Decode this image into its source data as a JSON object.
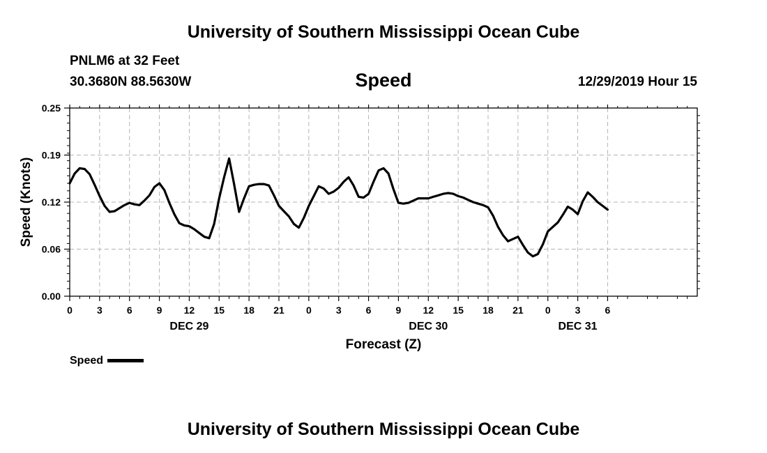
{
  "header": {
    "title": "University of Southern Mississippi Ocean Cube",
    "station": "PNLM6 at 32 Feet",
    "coords": "30.3680N 88.5630W",
    "variable": "Speed",
    "datetime": "12/29/2019 Hour 15"
  },
  "footer": {
    "title": "University of Southern Mississippi Ocean Cube"
  },
  "legend": {
    "label": "Speed"
  },
  "colors": {
    "line": "#000000",
    "grid": "#b4b4b4"
  },
  "chart_data": {
    "type": "line",
    "title": "Speed",
    "ylabel": "Speed (Knots)",
    "xlabel": "Forecast (Z)",
    "ylim": [
      0,
      0.25
    ],
    "xlim": [
      0,
      63
    ],
    "grid": true,
    "legend_position": "bottom-left",
    "yticks": [
      {
        "value": 0.0,
        "label": "0.00"
      },
      {
        "value": 0.0625,
        "label": "0.06"
      },
      {
        "value": 0.125,
        "label": "0.12"
      },
      {
        "value": 0.1875,
        "label": "0.19"
      },
      {
        "value": 0.25,
        "label": "0.25"
      }
    ],
    "xticks": [
      {
        "value": 0,
        "label": "0"
      },
      {
        "value": 3,
        "label": "3"
      },
      {
        "value": 6,
        "label": "6"
      },
      {
        "value": 9,
        "label": "9"
      },
      {
        "value": 12,
        "label": "12"
      },
      {
        "value": 15,
        "label": "15"
      },
      {
        "value": 18,
        "label": "18"
      },
      {
        "value": 21,
        "label": "21"
      },
      {
        "value": 24,
        "label": "0"
      },
      {
        "value": 27,
        "label": "3"
      },
      {
        "value": 30,
        "label": "6"
      },
      {
        "value": 33,
        "label": "9"
      },
      {
        "value": 36,
        "label": "12"
      },
      {
        "value": 39,
        "label": "15"
      },
      {
        "value": 42,
        "label": "18"
      },
      {
        "value": 45,
        "label": "21"
      },
      {
        "value": 48,
        "label": "0"
      },
      {
        "value": 51,
        "label": "3"
      },
      {
        "value": 54,
        "label": "6"
      }
    ],
    "date_labels": [
      {
        "value": 12,
        "label": "DEC 29"
      },
      {
        "value": 36,
        "label": "DEC 30"
      },
      {
        "value": 51,
        "label": "DEC 31"
      }
    ],
    "series": [
      {
        "name": "Speed",
        "x": [
          0,
          0.5,
          1,
          1.5,
          2,
          2.5,
          3,
          3.5,
          4,
          4.5,
          5,
          5.5,
          6,
          6.5,
          7,
          7.5,
          8,
          8.5,
          9,
          9.5,
          10,
          10.5,
          11,
          11.5,
          12,
          12.5,
          13,
          13.5,
          14,
          14.5,
          15,
          15.5,
          16,
          16.5,
          17,
          17.5,
          18,
          18.5,
          19,
          19.5,
          20,
          20.5,
          21,
          21.5,
          22,
          22.5,
          23,
          23.5,
          24,
          24.5,
          25,
          25.5,
          26,
          26.5,
          27,
          27.5,
          28,
          28.5,
          29,
          29.5,
          30,
          30.5,
          31,
          31.5,
          32,
          32.5,
          33,
          33.5,
          34,
          34.5,
          35,
          35.5,
          36,
          36.5,
          37,
          37.5,
          38,
          38.5,
          39,
          39.5,
          40,
          40.5,
          41,
          41.5,
          42,
          42.5,
          43,
          43.5,
          44,
          44.5,
          45,
          45.5,
          46,
          46.5,
          47,
          47.5,
          48,
          48.5,
          49,
          49.5,
          50,
          50.5,
          51,
          51.5,
          52,
          52.5,
          53,
          53.5,
          54
        ],
        "values": [
          0.15,
          0.163,
          0.17,
          0.169,
          0.162,
          0.148,
          0.133,
          0.12,
          0.112,
          0.113,
          0.117,
          0.121,
          0.124,
          0.122,
          0.121,
          0.127,
          0.134,
          0.145,
          0.15,
          0.141,
          0.124,
          0.109,
          0.097,
          0.094,
          0.093,
          0.089,
          0.084,
          0.079,
          0.077,
          0.096,
          0.13,
          0.158,
          0.183,
          0.149,
          0.112,
          0.13,
          0.146,
          0.148,
          0.149,
          0.149,
          0.147,
          0.134,
          0.12,
          0.113,
          0.106,
          0.096,
          0.091,
          0.104,
          0.12,
          0.133,
          0.146,
          0.143,
          0.136,
          0.139,
          0.144,
          0.152,
          0.158,
          0.147,
          0.132,
          0.131,
          0.136,
          0.152,
          0.167,
          0.17,
          0.163,
          0.142,
          0.124,
          0.123,
          0.124,
          0.127,
          0.13,
          0.13,
          0.13,
          0.132,
          0.134,
          0.136,
          0.137,
          0.136,
          0.133,
          0.131,
          0.128,
          0.125,
          0.123,
          0.121,
          0.118,
          0.107,
          0.092,
          0.081,
          0.073,
          0.076,
          0.079,
          0.068,
          0.058,
          0.053,
          0.056,
          0.069,
          0.086,
          0.092,
          0.098,
          0.108,
          0.119,
          0.115,
          0.109,
          0.126,
          0.138,
          0.132,
          0.125,
          0.12,
          0.115
        ]
      }
    ]
  }
}
